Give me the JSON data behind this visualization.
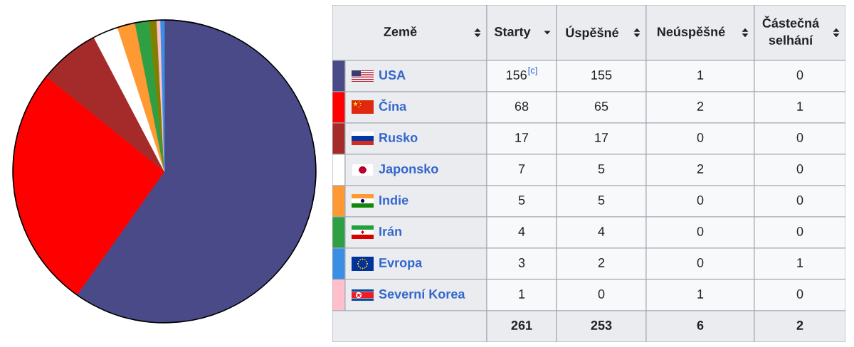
{
  "chart_data": [
    {
      "type": "pie",
      "categories": [
        null,
        null,
        null,
        null,
        null,
        null,
        null,
        null,
        null
      ],
      "values": [
        59.8,
        26.0,
        6.5,
        2.7,
        1.9,
        1.5,
        0.8,
        0.4,
        0.4
      ],
      "colors": [
        "#494a87",
        "#ff0000",
        "#a52a2a",
        "#ffffff",
        "#ff9933",
        "#2e9f42",
        "#808000",
        "#ffc0cb",
        "#3a8ee6"
      ]
    },
    {
      "type": "other",
      "ylabel": "Země",
      "categories": [
        "USA",
        "Čína",
        "Rusko",
        "Japonsko",
        "Indie",
        "Irán",
        "Evropa",
        "Severní Korea"
      ],
      "colors": [
        "#494a87",
        "#ff0000",
        "#a52a2a",
        "#ffffff",
        "#ff9933",
        "#2e9f42",
        "#3a8ee6",
        "#ffc0cb"
      ],
      "series": [
        {
          "name": "Starty",
          "values": [
            156,
            68,
            17,
            7,
            5,
            4,
            3,
            1
          ],
          "value_labels": [
            "156$^{[c]}$",
            "68",
            "17",
            "7",
            "5",
            "4",
            "3",
            "1"
          ]
        },
        {
          "name": "Úspěšné",
          "values": [
            155,
            65,
            17,
            5,
            5,
            4,
            2,
            0
          ]
        },
        {
          "name": "Neúspěšné",
          "values": [
            1,
            2,
            0,
            2,
            0,
            0,
            0,
            1
          ]
        },
        {
          "name": "Částečná selhání",
          "values": [
            0,
            1,
            0,
            0,
            0,
            0,
            1,
            0
          ]
        }
      ],
      "data_labels": true,
      "totals": [
        "261",
        "253",
        "6",
        "2"
      ]
    }
  ]
}
